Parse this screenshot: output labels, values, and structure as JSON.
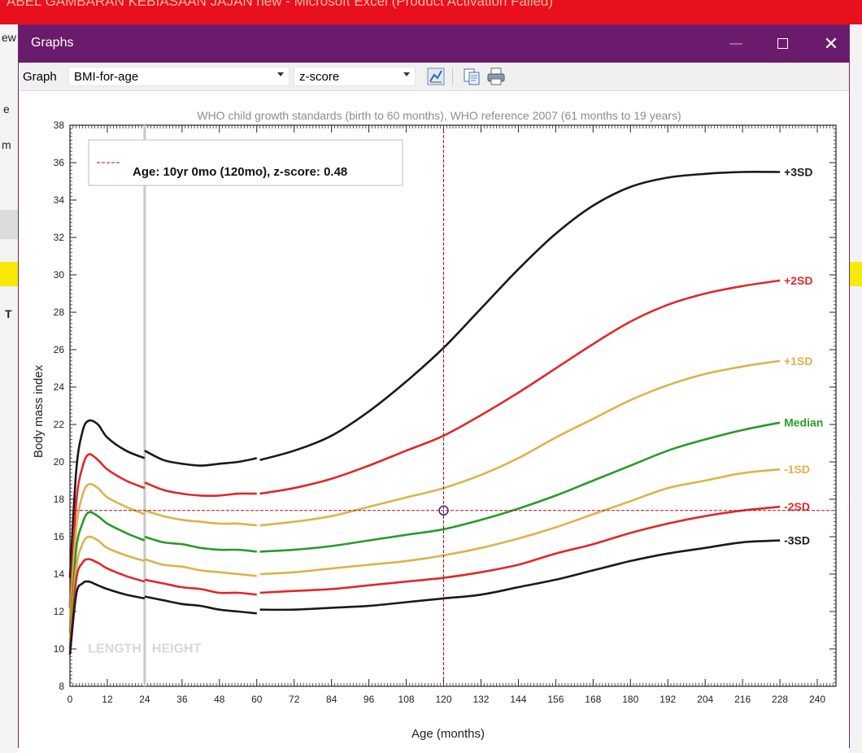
{
  "excel": {
    "title": "ABEL GAMBARAN KEBIASAAN JAJAN new  -  Microsoft Excel (Product Activation Failed)",
    "side_chars": [
      "ew",
      "e",
      "m",
      "T"
    ]
  },
  "window": {
    "title": "Graphs",
    "minimize_glyph": "—",
    "close_glyph": "✕"
  },
  "toolbar": {
    "graph_label": "Graph",
    "graph_select_value": "BMI-for-age",
    "score_select_value": "z-score",
    "icons": [
      "chart-options-icon",
      "copy-icon",
      "print-icon"
    ]
  },
  "colors": {
    "title_bar": "#6b1b6b",
    "sd3": "#1a1a1a",
    "sd2": "#e0282b",
    "sd1": "#ddb24a",
    "median": "#2a9a2a",
    "crosshair": "#a01020",
    "split_line": "#c8c8c8"
  },
  "chart_data": {
    "type": "line",
    "title": "WHO child growth standards (birth to 60 months), WHO reference 2007 (61 months to 19 years)",
    "xlabel": "Age (months)",
    "ylabel": "Body mass index",
    "xlim": [
      0,
      246
    ],
    "ylim": [
      8,
      38
    ],
    "xticks": [
      0,
      12,
      24,
      36,
      48,
      60,
      72,
      84,
      96,
      108,
      120,
      132,
      144,
      156,
      168,
      180,
      192,
      204,
      216,
      228,
      240
    ],
    "yticks": [
      8,
      10,
      12,
      14,
      16,
      18,
      20,
      22,
      24,
      26,
      28,
      30,
      32,
      34,
      36,
      38
    ],
    "region_labels": [
      "LENGTH",
      "HEIGHT"
    ],
    "split_at_months": 24,
    "series": [
      {
        "name": "+3SD",
        "color_key": "sd3",
        "points": [
          [
            0,
            13.8
          ],
          [
            2,
            19.5
          ],
          [
            4,
            21.6
          ],
          [
            6,
            22.2
          ],
          [
            9,
            22.0
          ],
          [
            12,
            21.3
          ],
          [
            18,
            20.6
          ],
          [
            24,
            20.2
          ],
          [
            24,
            20.6
          ],
          [
            30,
            20.1
          ],
          [
            36,
            19.9
          ],
          [
            42,
            19.8
          ],
          [
            48,
            19.9
          ],
          [
            54,
            20.0
          ],
          [
            60,
            20.2
          ],
          [
            61,
            20.1
          ],
          [
            72,
            20.6
          ],
          [
            84,
            21.4
          ],
          [
            96,
            22.7
          ],
          [
            108,
            24.3
          ],
          [
            120,
            26.1
          ],
          [
            132,
            28.2
          ],
          [
            144,
            30.3
          ],
          [
            156,
            32.2
          ],
          [
            168,
            33.7
          ],
          [
            180,
            34.7
          ],
          [
            192,
            35.2
          ],
          [
            204,
            35.4
          ],
          [
            216,
            35.5
          ],
          [
            228,
            35.5
          ]
        ]
      },
      {
        "name": "+2SD",
        "color_key": "sd2",
        "points": [
          [
            0,
            12.2
          ],
          [
            2,
            17.8
          ],
          [
            4,
            19.7
          ],
          [
            6,
            20.4
          ],
          [
            9,
            20.1
          ],
          [
            12,
            19.6
          ],
          [
            18,
            19.0
          ],
          [
            24,
            18.6
          ],
          [
            24,
            18.9
          ],
          [
            30,
            18.5
          ],
          [
            36,
            18.3
          ],
          [
            42,
            18.2
          ],
          [
            48,
            18.2
          ],
          [
            54,
            18.3
          ],
          [
            60,
            18.3
          ],
          [
            61,
            18.3
          ],
          [
            72,
            18.6
          ],
          [
            84,
            19.1
          ],
          [
            96,
            19.8
          ],
          [
            108,
            20.6
          ],
          [
            120,
            21.4
          ],
          [
            132,
            22.5
          ],
          [
            144,
            23.7
          ],
          [
            156,
            25.0
          ],
          [
            168,
            26.3
          ],
          [
            180,
            27.5
          ],
          [
            192,
            28.4
          ],
          [
            204,
            29.0
          ],
          [
            216,
            29.4
          ],
          [
            228,
            29.7
          ]
        ]
      },
      {
        "name": "+1SD",
        "color_key": "sd1",
        "points": [
          [
            0,
            11.5
          ],
          [
            2,
            16.4
          ],
          [
            4,
            18.2
          ],
          [
            6,
            18.8
          ],
          [
            9,
            18.6
          ],
          [
            12,
            18.1
          ],
          [
            18,
            17.6
          ],
          [
            24,
            17.2
          ],
          [
            24,
            17.4
          ],
          [
            30,
            17.1
          ],
          [
            36,
            16.9
          ],
          [
            42,
            16.8
          ],
          [
            48,
            16.7
          ],
          [
            54,
            16.7
          ],
          [
            60,
            16.6
          ],
          [
            61,
            16.6
          ],
          [
            72,
            16.8
          ],
          [
            84,
            17.1
          ],
          [
            96,
            17.6
          ],
          [
            108,
            18.1
          ],
          [
            120,
            18.6
          ],
          [
            132,
            19.3
          ],
          [
            144,
            20.2
          ],
          [
            156,
            21.3
          ],
          [
            168,
            22.3
          ],
          [
            180,
            23.3
          ],
          [
            192,
            24.1
          ],
          [
            204,
            24.7
          ],
          [
            216,
            25.1
          ],
          [
            228,
            25.4
          ]
        ]
      },
      {
        "name": "Median",
        "color_key": "median",
        "points": [
          [
            0,
            10.8
          ],
          [
            2,
            15.3
          ],
          [
            4,
            16.7
          ],
          [
            6,
            17.3
          ],
          [
            9,
            17.1
          ],
          [
            12,
            16.7
          ],
          [
            18,
            16.2
          ],
          [
            24,
            15.8
          ],
          [
            24,
            16.0
          ],
          [
            30,
            15.7
          ],
          [
            36,
            15.6
          ],
          [
            42,
            15.4
          ],
          [
            48,
            15.3
          ],
          [
            54,
            15.3
          ],
          [
            60,
            15.2
          ],
          [
            61,
            15.2
          ],
          [
            72,
            15.3
          ],
          [
            84,
            15.5
          ],
          [
            96,
            15.8
          ],
          [
            108,
            16.1
          ],
          [
            120,
            16.4
          ],
          [
            132,
            16.9
          ],
          [
            144,
            17.5
          ],
          [
            156,
            18.2
          ],
          [
            168,
            19.0
          ],
          [
            180,
            19.8
          ],
          [
            192,
            20.6
          ],
          [
            204,
            21.2
          ],
          [
            216,
            21.7
          ],
          [
            228,
            22.1
          ]
        ]
      },
      {
        "name": "-1SD",
        "color_key": "sd1",
        "points": [
          [
            0,
            10.3
          ],
          [
            2,
            14.3
          ],
          [
            4,
            15.6
          ],
          [
            6,
            16.0
          ],
          [
            9,
            15.8
          ],
          [
            12,
            15.4
          ],
          [
            18,
            15.0
          ],
          [
            24,
            14.7
          ],
          [
            24,
            14.8
          ],
          [
            30,
            14.5
          ],
          [
            36,
            14.4
          ],
          [
            42,
            14.2
          ],
          [
            48,
            14.1
          ],
          [
            54,
            14.0
          ],
          [
            60,
            13.9
          ],
          [
            61,
            14.0
          ],
          [
            72,
            14.1
          ],
          [
            84,
            14.3
          ],
          [
            96,
            14.5
          ],
          [
            108,
            14.7
          ],
          [
            120,
            15.0
          ],
          [
            132,
            15.4
          ],
          [
            144,
            15.9
          ],
          [
            156,
            16.5
          ],
          [
            168,
            17.2
          ],
          [
            180,
            17.9
          ],
          [
            192,
            18.6
          ],
          [
            204,
            19.0
          ],
          [
            216,
            19.4
          ],
          [
            228,
            19.6
          ]
        ]
      },
      {
        "name": "-2SD",
        "color_key": "sd2",
        "points": [
          [
            0,
            10.0
          ],
          [
            2,
            13.7
          ],
          [
            4,
            14.6
          ],
          [
            6,
            14.8
          ],
          [
            9,
            14.6
          ],
          [
            12,
            14.3
          ],
          [
            18,
            13.9
          ],
          [
            24,
            13.6
          ],
          [
            24,
            13.7
          ],
          [
            30,
            13.5
          ],
          [
            36,
            13.3
          ],
          [
            42,
            13.2
          ],
          [
            48,
            13.0
          ],
          [
            54,
            13.0
          ],
          [
            60,
            12.9
          ],
          [
            61,
            13.0
          ],
          [
            72,
            13.1
          ],
          [
            84,
            13.2
          ],
          [
            96,
            13.4
          ],
          [
            108,
            13.6
          ],
          [
            120,
            13.8
          ],
          [
            132,
            14.1
          ],
          [
            144,
            14.5
          ],
          [
            156,
            15.1
          ],
          [
            168,
            15.6
          ],
          [
            180,
            16.2
          ],
          [
            192,
            16.7
          ],
          [
            204,
            17.1
          ],
          [
            216,
            17.4
          ],
          [
            228,
            17.6
          ]
        ]
      },
      {
        "name": "-3SD",
        "color_key": "sd3",
        "points": [
          [
            0,
            9.7
          ],
          [
            2,
            12.9
          ],
          [
            4,
            13.5
          ],
          [
            6,
            13.6
          ],
          [
            9,
            13.4
          ],
          [
            12,
            13.2
          ],
          [
            18,
            12.9
          ],
          [
            24,
            12.7
          ],
          [
            24,
            12.8
          ],
          [
            30,
            12.6
          ],
          [
            36,
            12.4
          ],
          [
            42,
            12.3
          ],
          [
            48,
            12.1
          ],
          [
            54,
            12.0
          ],
          [
            60,
            11.9
          ],
          [
            61,
            12.1
          ],
          [
            72,
            12.1
          ],
          [
            84,
            12.2
          ],
          [
            96,
            12.3
          ],
          [
            108,
            12.5
          ],
          [
            120,
            12.7
          ],
          [
            132,
            12.9
          ],
          [
            144,
            13.3
          ],
          [
            156,
            13.7
          ],
          [
            168,
            14.2
          ],
          [
            180,
            14.7
          ],
          [
            192,
            15.1
          ],
          [
            204,
            15.4
          ],
          [
            216,
            15.7
          ],
          [
            228,
            15.8
          ]
        ]
      }
    ],
    "marker": {
      "x": 120,
      "y": 17.4,
      "label": "Age: 10yr 0mo (120mo), z-score: 0.48"
    },
    "legend_position": "top-left",
    "grid": false
  }
}
